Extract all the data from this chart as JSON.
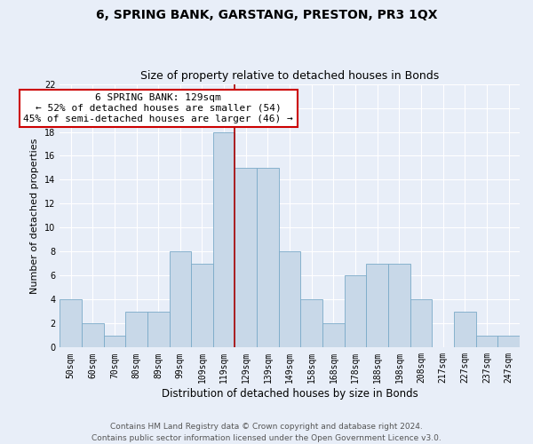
{
  "title": "6, SPRING BANK, GARSTANG, PRESTON, PR3 1QX",
  "subtitle": "Size of property relative to detached houses in Bonds",
  "xlabel": "Distribution of detached houses by size in Bonds",
  "ylabel": "Number of detached properties",
  "categories": [
    "50sqm",
    "60sqm",
    "70sqm",
    "80sqm",
    "89sqm",
    "99sqm",
    "109sqm",
    "119sqm",
    "129sqm",
    "139sqm",
    "149sqm",
    "158sqm",
    "168sqm",
    "178sqm",
    "188sqm",
    "198sqm",
    "208sqm",
    "217sqm",
    "227sqm",
    "237sqm",
    "247sqm"
  ],
  "values": [
    4,
    2,
    1,
    3,
    3,
    8,
    7,
    18,
    15,
    15,
    8,
    4,
    2,
    6,
    7,
    7,
    4,
    0,
    3,
    1,
    1
  ],
  "bar_color": "#c8d8e8",
  "bar_edge_color": "#7aaac8",
  "highlight_index": 8,
  "highlight_line_color": "#aa0000",
  "annotation_text": "6 SPRING BANK: 129sqm\n← 52% of detached houses are smaller (54)\n45% of semi-detached houses are larger (46) →",
  "annotation_box_color": "#ffffff",
  "annotation_box_edge_color": "#cc0000",
  "ylim": [
    0,
    22
  ],
  "yticks": [
    0,
    2,
    4,
    6,
    8,
    10,
    12,
    14,
    16,
    18,
    20,
    22
  ],
  "background_color": "#e8eef8",
  "grid_color": "#ffffff",
  "footer_text": "Contains HM Land Registry data © Crown copyright and database right 2024.\nContains public sector information licensed under the Open Government Licence v3.0.",
  "title_fontsize": 10,
  "subtitle_fontsize": 9,
  "xlabel_fontsize": 8.5,
  "ylabel_fontsize": 8,
  "tick_fontsize": 7,
  "annotation_fontsize": 8,
  "footer_fontsize": 6.5
}
